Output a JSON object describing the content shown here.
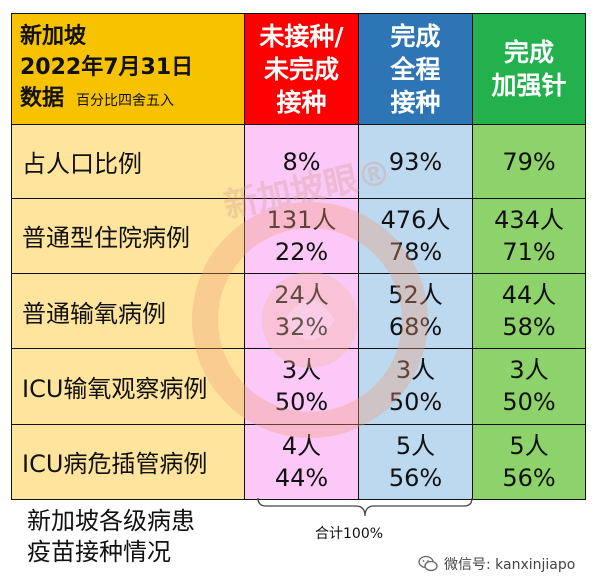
{
  "header": {
    "corner_line1": "新加坡",
    "corner_line2": "2022年7月31日",
    "corner_line3": "数据",
    "corner_note": "百分比四舍五入",
    "col_unvax": [
      "未接种/",
      "未完成",
      "接种"
    ],
    "col_full": [
      "完成",
      "全程",
      "接种"
    ],
    "col_booster": [
      "完成",
      "加强针"
    ]
  },
  "rows": [
    {
      "label": "占人口比例",
      "unvax": [
        "8%"
      ],
      "full": [
        "93%"
      ],
      "booster": [
        "79%"
      ]
    },
    {
      "label": "普通型住院病例",
      "unvax": [
        "131人",
        "22%"
      ],
      "full": [
        "476人",
        "78%"
      ],
      "booster": [
        "434人",
        "71%"
      ]
    },
    {
      "label": "普通输氧病例",
      "unvax": [
        "24人",
        "32%"
      ],
      "full": [
        "52人",
        "68%"
      ],
      "booster": [
        "44人",
        "58%"
      ]
    },
    {
      "label": "ICU输氧观察病例",
      "unvax": [
        "3人",
        "50%"
      ],
      "full": [
        "3人",
        "50%"
      ],
      "booster": [
        "3人",
        "50%"
      ]
    },
    {
      "label": "ICU病危插管病例",
      "unvax": [
        "4人",
        "44%"
      ],
      "full": [
        "5人",
        "56%"
      ],
      "booster": [
        "5人",
        "56%"
      ]
    }
  ],
  "caption": {
    "line1": "新加坡各级病患",
    "line2": "疫苗接种情况"
  },
  "total_label": "合计100%",
  "wechat": {
    "label": "微信号: kanxinjiapo",
    "icon": "wechat-icon"
  },
  "watermark": {
    "text": "新加坡眼®"
  },
  "colors": {
    "corner": "#f7c300",
    "unvax_header": "#ff0000",
    "full_header": "#2e75b6",
    "booster_header": "#22b14c",
    "label_bg": "#fee49c",
    "unvax_bg": "#fbc8f7",
    "full_bg": "#bcd9f0",
    "booster_bg": "#8ed26b"
  }
}
